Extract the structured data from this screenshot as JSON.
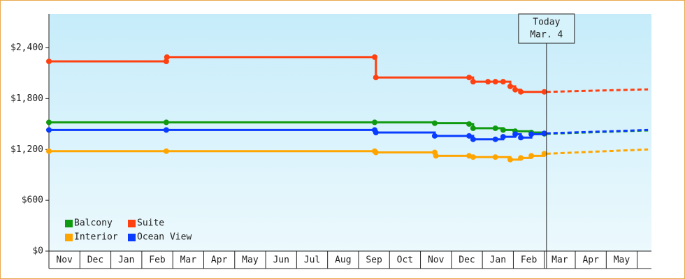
{
  "chart_data": {
    "type": "step-line",
    "categories": [
      "Nov",
      "Dec",
      "Jan",
      "Feb",
      "Mar",
      "Apr",
      "May",
      "Jun",
      "Jul",
      "Aug",
      "Sep",
      "Oct",
      "Nov",
      "Dec",
      "Jan",
      "Feb",
      "Mar",
      "Apr",
      "May"
    ],
    "xlim": [
      0,
      19.46
    ],
    "ylim": [
      0,
      2800
    ],
    "yticks": [
      {
        "value": 0,
        "label": "$0"
      },
      {
        "value": 600,
        "label": "$600"
      },
      {
        "value": 1200,
        "label": "$1,200"
      },
      {
        "value": 1800,
        "label": "$1,800"
      },
      {
        "value": 2400,
        "label": "$2,400"
      }
    ],
    "grid": false,
    "legend": "lower-left",
    "today": {
      "x": 16.07,
      "title": "Today",
      "label": "Mar. 4"
    },
    "series": [
      {
        "name": "Balcony",
        "color": "#109a10",
        "x": [
          0,
          3.79,
          10.52,
          12.46,
          13.57,
          13.7,
          14.42,
          14.67,
          15.06,
          15.58,
          16.0
        ],
        "values": [
          1520,
          1520,
          1520,
          1510,
          1500,
          1450,
          1450,
          1430,
          1415,
          1400,
          1385
        ],
        "forecast": {
          "x": [
            16.07,
            19.35
          ],
          "values": [
            1385,
            1425
          ]
        }
      },
      {
        "name": "Suite",
        "color": "#ff4010",
        "x": [
          0,
          3.79,
          3.81,
          10.52,
          10.56,
          13.57,
          13.7,
          14.18,
          14.42,
          14.67,
          14.9,
          15.06,
          15.24,
          16.0
        ],
        "values": [
          2240,
          2240,
          2290,
          2290,
          2050,
          2050,
          2000,
          2000,
          2000,
          2000,
          1945,
          1905,
          1880,
          1880
        ],
        "forecast": {
          "x": [
            16.07,
            19.35
          ],
          "values": [
            1880,
            1910
          ]
        }
      },
      {
        "name": "Interior",
        "color": "#ffa500",
        "x": [
          0,
          3.79,
          10.52,
          10.56,
          12.46,
          12.5,
          13.57,
          13.7,
          14.42,
          14.9,
          15.24,
          15.58,
          16.0
        ],
        "values": [
          1180,
          1180,
          1180,
          1165,
          1165,
          1125,
          1125,
          1110,
          1110,
          1080,
          1100,
          1125,
          1150
        ],
        "forecast": {
          "x": [
            16.07,
            19.35
          ],
          "values": [
            1150,
            1200
          ]
        }
      },
      {
        "name": "Ocean View",
        "color": "#0a3cff",
        "x": [
          0,
          3.79,
          10.52,
          10.56,
          12.46,
          13.57,
          13.7,
          14.42,
          14.67,
          15.06,
          15.24,
          15.58,
          16.0
        ],
        "values": [
          1430,
          1430,
          1430,
          1400,
          1360,
          1360,
          1320,
          1320,
          1350,
          1380,
          1340,
          1380,
          1390
        ],
        "forecast": {
          "x": [
            16.07,
            19.35
          ],
          "values": [
            1390,
            1430
          ]
        }
      }
    ]
  }
}
